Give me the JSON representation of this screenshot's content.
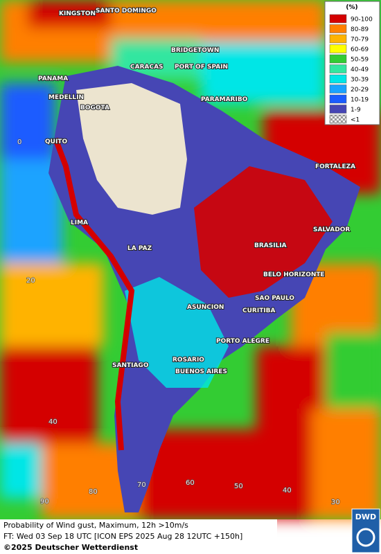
{
  "map": {
    "cities": [
      "KINGSTON",
      "SANTO DOMINGO",
      "BRIDGETOWN",
      "CARACAS",
      "PORT OF SPAIN",
      "PANAMA",
      "MEDELLIN",
      "BOGOTA",
      "PARAMARIBO",
      "QUITO",
      "FORTALEZA",
      "LIMA",
      "SALVADOR",
      "BRASILIA",
      "LA PAZ",
      "BELO HORIZONTE",
      "ASUNCION",
      "SAO PAULO",
      "CURITIBA",
      "PORTO ALEGRE",
      "ROSARIO",
      "SANTIAGO",
      "BUENOS AIRES"
    ],
    "grid_labels": [
      "0",
      "20",
      "40",
      "90",
      "80",
      "70",
      "60",
      "50",
      "40",
      "30"
    ]
  },
  "legend": {
    "title": "(%)",
    "items": [
      {
        "label": "90-100",
        "color": "#d40000"
      },
      {
        "label": "80-89",
        "color": "#ff7f00"
      },
      {
        "label": "70-79",
        "color": "#ffb300"
      },
      {
        "label": "60-69",
        "color": "#ffff00"
      },
      {
        "label": "50-59",
        "color": "#33cc33"
      },
      {
        "label": "40-49",
        "color": "#33e6a0"
      },
      {
        "label": "30-39",
        "color": "#00e6e6"
      },
      {
        "label": "20-29",
        "color": "#1aa3ff"
      },
      {
        "label": "10-19",
        "color": "#1a5cff"
      },
      {
        "label": "1-9",
        "color": "#4646b4"
      },
      {
        "label": "<1",
        "color": "#c8c8c8"
      }
    ]
  },
  "footer": {
    "line1": "Probability of Wind gust, Maximum, 12h >10m/s",
    "line2": "FT: Wed 03 Sep 18 UTC [ICON EPS 2025 Aug 28 12UTC +150h]",
    "line3": "©2025 Deutscher Wetterdienst",
    "logo": "DWD"
  }
}
